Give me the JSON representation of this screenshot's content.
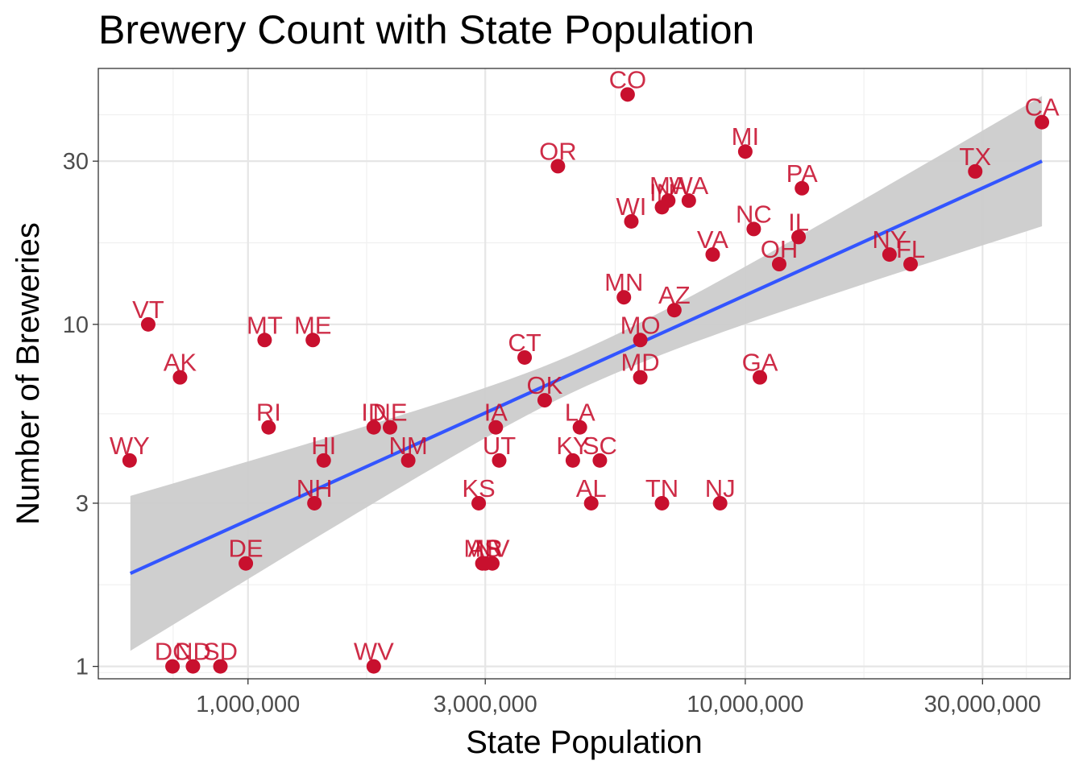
{
  "chart_data": {
    "type": "scatter",
    "title": "Brewery Count with State Population",
    "xlabel": "State Population",
    "ylabel": "Number of Breweries",
    "x_scale": "log10",
    "y_scale": "log10",
    "xlim": [
      500000,
      45000000
    ],
    "ylim": [
      0.92,
      56
    ],
    "x_ticks": [
      1000000,
      3000000,
      10000000,
      30000000
    ],
    "x_tick_labels": [
      "1,000,000",
      "3,000,000",
      "10,000,000",
      "30,000,000"
    ],
    "y_ticks": [
      1,
      3,
      10,
      30
    ],
    "y_tick_labels": [
      "1",
      "3",
      "10",
      "30"
    ],
    "grid": true,
    "point_color": "#c8102e",
    "trend_color": "#3355ff",
    "band_color": "#cccccc",
    "trend_line": {
      "type": "linear fit (log-log) with confidence band",
      "x": [
        580000,
        39500000
      ],
      "fit": [
        1.87,
        30
      ],
      "lower": [
        1.28,
        19.0
      ],
      "upper": [
        3.15,
        46.5
      ]
    },
    "points": [
      {
        "label": "CA",
        "x": 39500000,
        "y": 39
      },
      {
        "label": "TX",
        "x": 29000000,
        "y": 28
      },
      {
        "label": "CO",
        "x": 5800000,
        "y": 47
      },
      {
        "label": "MI",
        "x": 10000000,
        "y": 32
      },
      {
        "label": "OR",
        "x": 4200000,
        "y": 29
      },
      {
        "label": "PA",
        "x": 13000000,
        "y": 25
      },
      {
        "label": "MA",
        "x": 7000000,
        "y": 23
      },
      {
        "label": "IN",
        "x": 6800000,
        "y": 22
      },
      {
        "label": "WA",
        "x": 7700000,
        "y": 23
      },
      {
        "label": "WI",
        "x": 5900000,
        "y": 20
      },
      {
        "label": "NC",
        "x": 10400000,
        "y": 19
      },
      {
        "label": "IL",
        "x": 12800000,
        "y": 18
      },
      {
        "label": "VA",
        "x": 8600000,
        "y": 16
      },
      {
        "label": "NY",
        "x": 19500000,
        "y": 16
      },
      {
        "label": "FL",
        "x": 21500000,
        "y": 15
      },
      {
        "label": "OH",
        "x": 11700000,
        "y": 15
      },
      {
        "label": "MN",
        "x": 5700000,
        "y": 12
      },
      {
        "label": "AZ",
        "x": 7200000,
        "y": 11
      },
      {
        "label": "MO",
        "x": 6150000,
        "y": 9
      },
      {
        "label": "MD",
        "x": 6150000,
        "y": 7
      },
      {
        "label": "GA",
        "x": 10700000,
        "y": 7
      },
      {
        "label": "CT",
        "x": 3600000,
        "y": 8
      },
      {
        "label": "OK",
        "x": 3950000,
        "y": 6
      },
      {
        "label": "LA",
        "x": 4650000,
        "y": 5
      },
      {
        "label": "IA",
        "x": 3150000,
        "y": 5
      },
      {
        "label": "ID",
        "x": 1790000,
        "y": 5
      },
      {
        "label": "NE",
        "x": 1930000,
        "y": 5
      },
      {
        "label": "UT",
        "x": 3200000,
        "y": 4
      },
      {
        "label": "KY",
        "x": 4500000,
        "y": 4
      },
      {
        "label": "SC",
        "x": 5100000,
        "y": 4
      },
      {
        "label": "NM",
        "x": 2100000,
        "y": 4
      },
      {
        "label": "HI",
        "x": 1420000,
        "y": 4
      },
      {
        "label": "KS",
        "x": 2910000,
        "y": 3
      },
      {
        "label": "AL",
        "x": 4900000,
        "y": 3
      },
      {
        "label": "TN",
        "x": 6800000,
        "y": 3
      },
      {
        "label": "NJ",
        "x": 8900000,
        "y": 3
      },
      {
        "label": "NH",
        "x": 1360000,
        "y": 3
      },
      {
        "label": "MS",
        "x": 2960000,
        "y": 2
      },
      {
        "label": "AR",
        "x": 3000000,
        "y": 2
      },
      {
        "label": "NV",
        "x": 3100000,
        "y": 2
      },
      {
        "label": "DE",
        "x": 990000,
        "y": 2
      },
      {
        "label": "VT",
        "x": 630000,
        "y": 10
      },
      {
        "label": "AK",
        "x": 730000,
        "y": 7
      },
      {
        "label": "MT",
        "x": 1080000,
        "y": 9
      },
      {
        "label": "ME",
        "x": 1350000,
        "y": 9
      },
      {
        "label": "RI",
        "x": 1100000,
        "y": 5
      },
      {
        "label": "WY",
        "x": 578000,
        "y": 4
      },
      {
        "label": "DC",
        "x": 705000,
        "y": 1
      },
      {
        "label": "ND",
        "x": 775000,
        "y": 1
      },
      {
        "label": "SD",
        "x": 880000,
        "y": 1
      },
      {
        "label": "WV",
        "x": 1790000,
        "y": 1
      }
    ]
  }
}
